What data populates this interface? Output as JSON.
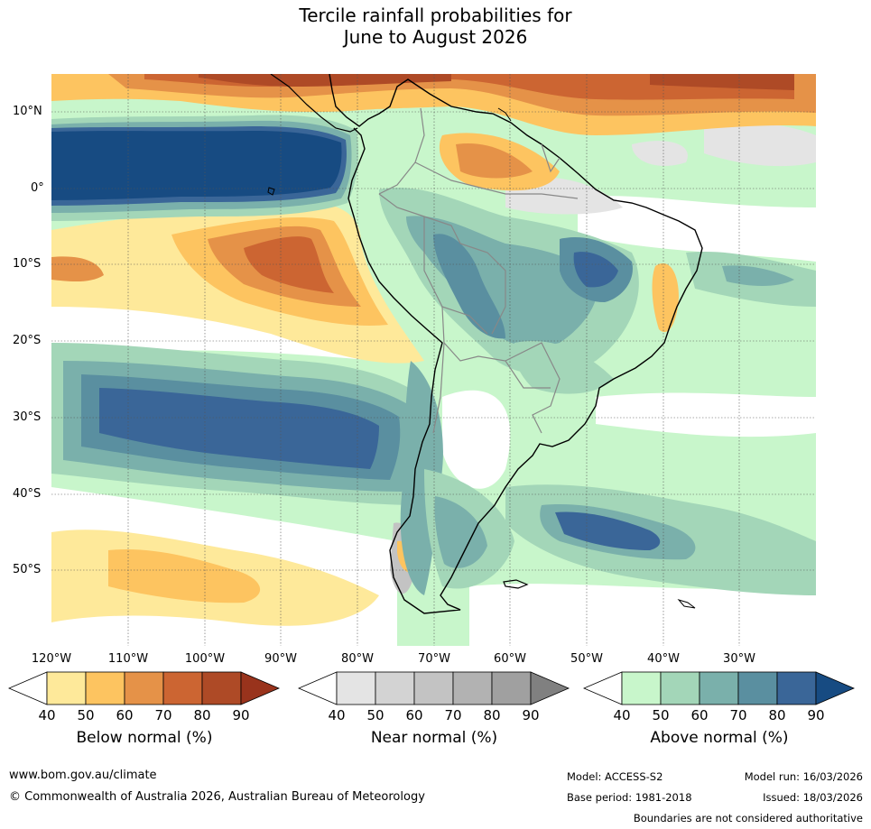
{
  "title": {
    "line1": "Tercile rainfall probabilities for",
    "line2": "June to August 2026"
  },
  "map": {
    "region": "South America",
    "lat_labels": [
      "10°N",
      "0°",
      "10°S",
      "20°S",
      "30°S",
      "40°S",
      "50°S"
    ],
    "lon_labels": [
      "120°W",
      "110°W",
      "100°W",
      "90°W",
      "80°W",
      "70°W",
      "60°W",
      "50°W",
      "40°W",
      "30°W"
    ]
  },
  "colorbars": {
    "ticks": [
      "40",
      "50",
      "60",
      "70",
      "80",
      "90"
    ],
    "below": {
      "title": "Below normal (%)",
      "colors": [
        "#ffffff",
        "#fee99a",
        "#fdc460",
        "#e59248",
        "#cc6532",
        "#ae4a26",
        "#99331c"
      ]
    },
    "near": {
      "title": "Near normal (%)",
      "colors": [
        "#ffffff",
        "#e4e4e4",
        "#d3d3d3",
        "#c3c3c3",
        "#b2b2b2",
        "#a0a0a0",
        "#808080"
      ]
    },
    "above": {
      "title": "Above normal (%)",
      "colors": [
        "#ffffff",
        "#c8f6cb",
        "#a3d6b8",
        "#7ab0ab",
        "#5a8fa0",
        "#3a6698",
        "#174b82"
      ]
    }
  },
  "footer": {
    "url": "www.bom.gov.au/climate",
    "copyright": "© Commonwealth of Australia 2026, Australian Bureau of Meteorology",
    "model": "Model: ACCESS-S2",
    "base_period": "Base period: 1981-2018",
    "model_run": "Model run: 16/03/2026",
    "issued": "Issued: 18/03/2026",
    "disclaimer": "Boundaries are not considered authoritative"
  }
}
